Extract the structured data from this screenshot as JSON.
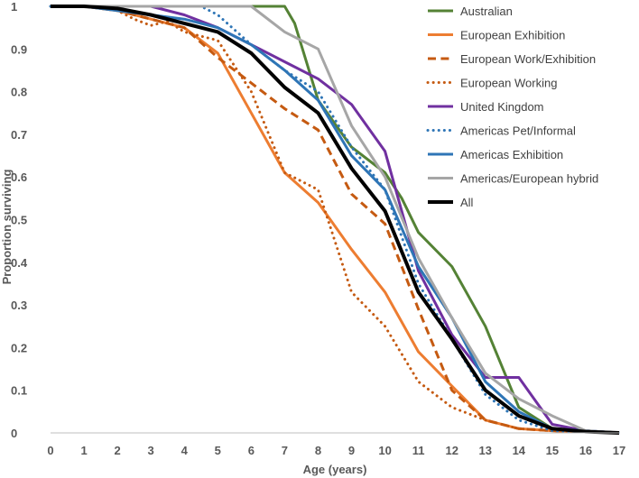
{
  "chart_data": {
    "type": "line",
    "title": "",
    "xlabel": "Age (years)",
    "ylabel": "Proportion surviving",
    "xlim": [
      0,
      17
    ],
    "ylim": [
      0,
      1
    ],
    "x_ticks": [
      "0",
      "1",
      "2",
      "3",
      "4",
      "5",
      "6",
      "7",
      "8",
      "9",
      "10",
      "11",
      "12",
      "13",
      "14",
      "15",
      "16",
      "17"
    ],
    "y_ticks": [
      "0",
      "0.1",
      "0.2",
      "0.3",
      "0.4",
      "0.5",
      "0.6",
      "0.7",
      "0.8",
      "0.9",
      "1"
    ],
    "legend_position": "top-right",
    "series": [
      {
        "name": "Australian",
        "color": "#548235",
        "dash": "solid",
        "width": 3,
        "x": [
          0,
          1,
          2,
          3,
          4,
          5,
          6,
          7,
          7.3,
          8,
          9,
          10,
          10.5,
          11,
          12,
          13,
          14,
          15,
          16,
          17
        ],
        "y": [
          1,
          1,
          1,
          1,
          1,
          1,
          1,
          1,
          0.96,
          0.78,
          0.67,
          0.61,
          0.55,
          0.47,
          0.39,
          0.25,
          0.06,
          0.01,
          0.005,
          0
        ]
      },
      {
        "name": "European Exhibition",
        "color": "#ED7D31",
        "dash": "solid",
        "width": 3,
        "x": [
          0,
          1,
          2,
          3,
          4,
          5,
          6,
          7,
          8,
          9,
          10,
          11,
          12,
          13,
          14,
          15,
          16,
          17
        ],
        "y": [
          1,
          1,
          0.99,
          0.97,
          0.95,
          0.89,
          0.75,
          0.61,
          0.54,
          0.43,
          0.33,
          0.19,
          0.11,
          0.03,
          0.01,
          0.005,
          0.003,
          0
        ]
      },
      {
        "name": "European Work/Exhibition",
        "color": "#C55A11",
        "dash": "dash",
        "width": 3,
        "x": [
          0,
          1,
          2,
          3,
          4,
          5,
          6,
          7,
          8,
          9,
          10,
          11,
          12,
          13,
          14,
          15,
          16,
          17
        ],
        "y": [
          1,
          1,
          0.99,
          0.97,
          0.95,
          0.88,
          0.82,
          0.76,
          0.71,
          0.56,
          0.49,
          0.29,
          0.1,
          0.03,
          0.01,
          0.005,
          0.003,
          0
        ]
      },
      {
        "name": "European Working",
        "color": "#C55A11",
        "dash": "dot",
        "width": 3,
        "x": [
          0,
          1,
          2,
          2.5,
          3,
          3.5,
          4,
          5,
          6,
          7,
          7.5,
          8,
          8.5,
          9,
          10,
          11,
          12,
          13,
          14,
          15,
          16,
          17
        ],
        "y": [
          1,
          1,
          0.99,
          0.97,
          0.955,
          0.965,
          0.94,
          0.92,
          0.8,
          0.61,
          0.59,
          0.57,
          0.45,
          0.33,
          0.25,
          0.12,
          0.06,
          0.03,
          0.01,
          0.005,
          0.003,
          0
        ]
      },
      {
        "name": "United Kingdom",
        "color": "#7030A0",
        "dash": "solid",
        "width": 3,
        "x": [
          0,
          1,
          2,
          3,
          4,
          5,
          6,
          7,
          8,
          9,
          10,
          11,
          12,
          13,
          14,
          15,
          16,
          17
        ],
        "y": [
          1,
          1,
          1,
          1,
          0.98,
          0.95,
          0.91,
          0.87,
          0.83,
          0.77,
          0.66,
          0.38,
          0.23,
          0.13,
          0.13,
          0.02,
          0.005,
          0
        ]
      },
      {
        "name": "Americas Pet/Informal",
        "color": "#2E75B6",
        "dash": "dot",
        "width": 3,
        "x": [
          0,
          1,
          2,
          3,
          4,
          4.5,
          5,
          6,
          7,
          8,
          9,
          10,
          11,
          12,
          13,
          14,
          15,
          16,
          17
        ],
        "y": [
          1,
          1,
          1,
          1,
          1,
          1,
          0.98,
          0.91,
          0.85,
          0.8,
          0.67,
          0.57,
          0.35,
          0.22,
          0.09,
          0.03,
          0.005,
          0.003,
          0
        ]
      },
      {
        "name": "Americas Exhibition",
        "color": "#2E75B6",
        "dash": "solid",
        "width": 3,
        "x": [
          0,
          1,
          2,
          3,
          4,
          5,
          6,
          7,
          8,
          9,
          10,
          11,
          12,
          13,
          14,
          15,
          16,
          17
        ],
        "y": [
          1,
          1,
          0.99,
          0.98,
          0.97,
          0.95,
          0.91,
          0.85,
          0.78,
          0.65,
          0.57,
          0.39,
          0.27,
          0.12,
          0.05,
          0.01,
          0.005,
          0
        ]
      },
      {
        "name": "Americas/European hybrid",
        "color": "#A6A6A6",
        "dash": "solid",
        "width": 3,
        "x": [
          0,
          1,
          2,
          3,
          4,
          5,
          6,
          7,
          8,
          9,
          10,
          11,
          12,
          13,
          14,
          15,
          16,
          17
        ],
        "y": [
          1,
          1,
          1,
          1,
          1,
          1,
          1,
          0.94,
          0.9,
          0.72,
          0.6,
          0.41,
          0.27,
          0.14,
          0.08,
          0.04,
          0.005,
          0
        ]
      },
      {
        "name": "All",
        "color": "#000000",
        "dash": "solid",
        "width": 4,
        "x": [
          0,
          1,
          2,
          3,
          4,
          5,
          6,
          7,
          8,
          9,
          10,
          11,
          12,
          13,
          14,
          15,
          16,
          17
        ],
        "y": [
          1,
          1,
          0.995,
          0.98,
          0.96,
          0.94,
          0.89,
          0.81,
          0.75,
          0.62,
          0.52,
          0.33,
          0.22,
          0.1,
          0.04,
          0.01,
          0.003,
          0
        ]
      }
    ]
  }
}
